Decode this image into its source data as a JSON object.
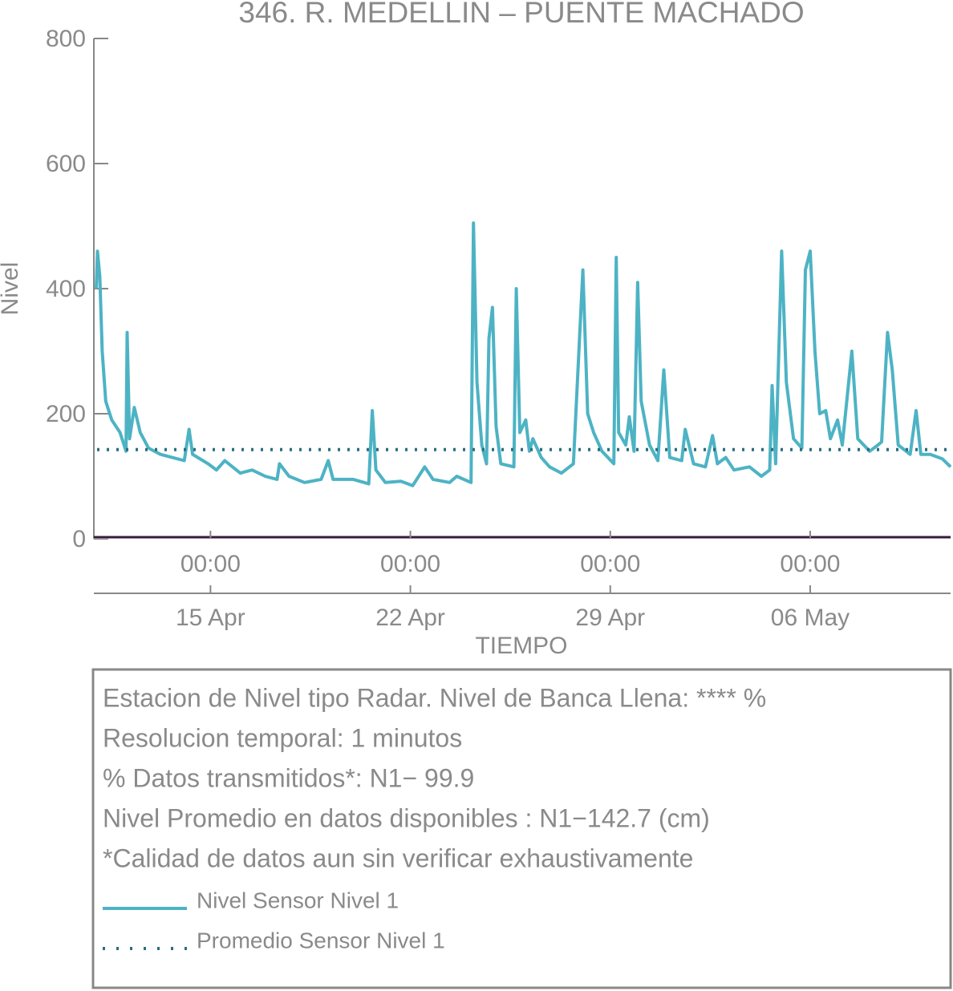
{
  "chart_data": {
    "type": "line",
    "title": "346. R. MEDELLIN – PUENTE MACHADO",
    "ylabel": "Nivel",
    "xlabel": "TIEMPO",
    "ylim": [
      0,
      800
    ],
    "yticks": [
      0,
      200,
      400,
      600,
      800
    ],
    "xlim": [
      "04-10 22:00",
      "05-10 22:00"
    ],
    "xticks": [
      {
        "value": "04-15 00:00",
        "label": "00:00"
      },
      {
        "value": "04-22 00:00",
        "label": "00:00"
      },
      {
        "value": "04-29 00:00",
        "label": "00:00"
      },
      {
        "value": "05-06 00:00",
        "label": "00:00"
      }
    ],
    "xticks_dates": [
      {
        "value": "04-15 00:00",
        "label": "15 Apr"
      },
      {
        "value": "04-22 00:00",
        "label": "22 Apr"
      },
      {
        "value": "04-29 00:00",
        "label": "29 Apr"
      },
      {
        "value": "05-06 00:00",
        "label": "06 May"
      }
    ],
    "x": [
      "04-11 00:00",
      "04-11 01:00",
      "04-11 03:00",
      "04-11 05:00",
      "04-11 08:00",
      "04-11 13:00",
      "04-11 20:00",
      "04-12 01:00",
      "04-12 02:00",
      "04-12 04:00",
      "04-12 08:00",
      "04-12 13:00",
      "04-12 20:00",
      "04-13 06:00",
      "04-14 02:00",
      "04-14 06:00",
      "04-14 09:00",
      "04-14 22:00",
      "04-15 05:00",
      "04-15 12:00",
      "04-16 01:00",
      "04-16 11:00",
      "04-16 22:00",
      "04-17 08:00",
      "04-17 10:00",
      "04-17 18:00",
      "04-18 07:00",
      "04-18 21:00",
      "04-19 03:00",
      "04-19 07:00",
      "04-20 00:00",
      "04-20 13:00",
      "04-20 16:00",
      "04-20 19:00",
      "04-21 03:00",
      "04-21 16:00",
      "04-22 02:00",
      "04-22 12:00",
      "04-22 19:00",
      "04-23 09:00",
      "04-23 15:00",
      "04-24 03:00",
      "04-24 05:00",
      "04-24 08:00",
      "04-24 12:00",
      "04-24 16:00",
      "04-24 18:00",
      "04-24 21:00",
      "04-25 00:00",
      "04-25 04:00",
      "04-25 15:00",
      "04-25 17:00",
      "04-25 20:00",
      "04-26 01:00",
      "04-26 04:00",
      "04-26 07:00",
      "04-26 14:00",
      "04-26 21:00",
      "04-27 07:00",
      "04-27 17:00",
      "04-28 01:00",
      "04-28 05:00",
      "04-28 10:00",
      "04-28 17:00",
      "04-29 03:00",
      "04-29 05:00",
      "04-29 07:00",
      "04-29 13:00",
      "04-29 16:00",
      "04-29 20:00",
      "04-29 23:00",
      "04-30 02:00",
      "04-30 09:00",
      "04-30 16:00",
      "04-30 21:00",
      "05-01 02:00",
      "05-01 12:00",
      "05-01 15:00",
      "05-01 22:00",
      "05-02 08:00",
      "05-02 14:00",
      "05-02 18:00",
      "05-03 01:00",
      "05-03 08:00",
      "05-03 21:00",
      "05-04 07:00",
      "05-04 14:00",
      "05-04 16:00",
      "05-04 19:00",
      "05-05 00:00",
      "05-05 04:00",
      "05-05 10:00",
      "05-05 17:00",
      "05-05 20:00",
      "05-06 00:00",
      "05-06 04:00",
      "05-06 08:00",
      "05-06 13:00",
      "05-06 17:00",
      "05-06 23:00",
      "05-07 03:00",
      "05-07 11:00",
      "05-07 16:00",
      "05-08 02:00",
      "05-08 09:00",
      "05-08 12:00",
      "05-08 17:00",
      "05-08 21:00",
      "05-09 02:00",
      "05-09 12:00",
      "05-09 17:00",
      "05-09 21:00",
      "05-10 05:00",
      "05-10 15:00",
      "05-10 22:00"
    ],
    "series": [
      {
        "name": "Nivel Sensor Nivel 1",
        "color": "#4db3c4",
        "values": [
          400,
          460,
          420,
          300,
          220,
          190,
          170,
          140,
          330,
          160,
          210,
          170,
          145,
          135,
          125,
          175,
          135,
          120,
          110,
          125,
          105,
          110,
          100,
          95,
          120,
          100,
          90,
          95,
          125,
          95,
          95,
          88,
          205,
          110,
          90,
          92,
          85,
          115,
          95,
          90,
          100,
          90,
          505,
          250,
          150,
          120,
          320,
          370,
          180,
          120,
          115,
          400,
          170,
          190,
          140,
          160,
          130,
          115,
          105,
          120,
          430,
          200,
          170,
          140,
          120,
          450,
          170,
          150,
          195,
          140,
          410,
          220,
          150,
          125,
          270,
          130,
          125,
          175,
          120,
          115,
          165,
          120,
          130,
          110,
          115,
          100,
          110,
          245,
          120,
          460,
          250,
          160,
          145,
          430,
          460,
          300,
          200,
          205,
          160,
          190,
          150,
          300,
          160,
          140,
          150,
          155,
          330,
          270,
          150,
          135,
          205,
          135,
          135,
          128,
          115
        ]
      },
      {
        "name": "Promedio Sensor Nivel 1",
        "color": "#2a6f80",
        "style": "dotted",
        "constant": 142.7
      }
    ],
    "notes": [
      "Estacion de Nivel tipo Radar. Nivel de Banca Llena: **** %",
      "Resolucion temporal: 1 minutos",
      "% Datos transmitidos*: N1− 99.9",
      "Nivel Promedio en datos disponibles : N1−142.7 (cm)",
      "*Calidad de datos aun sin verificar exhaustivamente"
    ]
  }
}
